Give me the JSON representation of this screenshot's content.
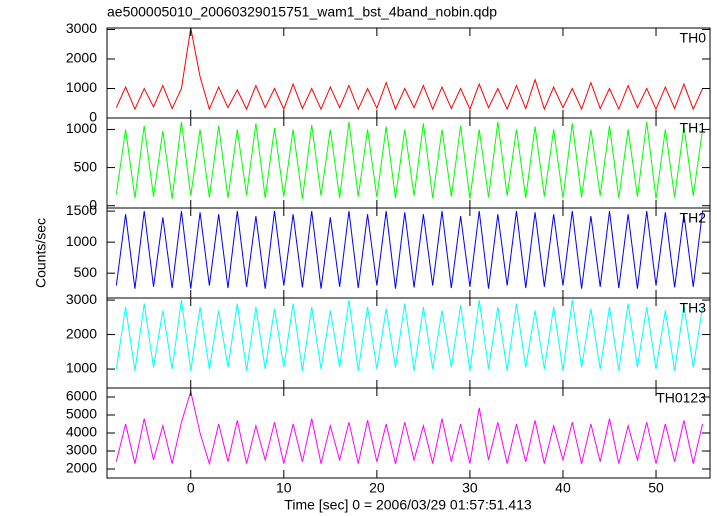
{
  "chart_data": {
    "type": "line",
    "title": "ae500005010_20060329015751_wam1_bst_4band_nobin.qdp",
    "x_label": "Time [sec] 0 = 2006/03/29 01:57:51.413",
    "y_label": "Counts/sec",
    "xlim": [
      -9,
      55.8
    ],
    "xticks": [
      0,
      10,
      20,
      30,
      40,
      50
    ],
    "x": [
      -8,
      -7,
      -6,
      -5,
      -4,
      -3,
      -2,
      -1,
      0,
      1,
      2,
      3,
      4,
      5,
      6,
      7,
      8,
      9,
      10,
      11,
      12,
      13,
      14,
      15,
      16,
      17,
      18,
      19,
      20,
      21,
      22,
      23,
      24,
      25,
      26,
      27,
      28,
      29,
      30,
      31,
      32,
      33,
      34,
      35,
      36,
      37,
      38,
      39,
      40,
      41,
      42,
      43,
      44,
      45,
      46,
      47,
      48,
      49,
      50,
      51,
      52,
      53,
      54,
      55
    ],
    "series": [
      {
        "name": "TH0",
        "color": "#ff0000",
        "ylim": [
          0,
          3050
        ],
        "yticks": [
          0,
          1000,
          2000,
          3000
        ],
        "values": [
          350,
          1050,
          300,
          1000,
          380,
          1100,
          320,
          1000,
          3050,
          1400,
          300,
          1050,
          350,
          950,
          300,
          1100,
          350,
          1000,
          300,
          1150,
          320,
          1000,
          300,
          1050,
          350,
          1100,
          300,
          1000,
          330,
          1200,
          300,
          1000,
          350,
          1100,
          300,
          1050,
          320,
          1000,
          300,
          1150,
          350,
          1000,
          300,
          1100,
          320,
          1300,
          300,
          1050,
          350,
          1000,
          300,
          1200,
          320,
          1000,
          300,
          1100,
          350,
          1000,
          300,
          1050,
          320,
          1150,
          300,
          1000
        ]
      },
      {
        "name": "TH1",
        "color": "#00ff00",
        "ylim": [
          -30,
          1150
        ],
        "yticks": [
          0,
          500,
          1000
        ],
        "values": [
          150,
          1000,
          100,
          1050,
          120,
          980,
          90,
          1100,
          130,
          1000,
          110,
          1050,
          100,
          1000,
          140,
          1080,
          100,
          1020,
          120,
          1000,
          90,
          1060,
          130,
          1000,
          100,
          1100,
          120,
          1000,
          110,
          1040,
          100,
          1000,
          130,
          1080,
          100,
          1000,
          120,
          1050,
          90,
          1000,
          110,
          1100,
          130,
          1000,
          100,
          1040,
          120,
          1000,
          100,
          1080,
          110,
          1000,
          130,
          1050,
          100,
          1000,
          120,
          1100,
          90,
          1000,
          110,
          1040,
          130,
          1000
        ]
      },
      {
        "name": "TH2",
        "color": "#0000ff",
        "ylim": [
          100,
          1550
        ],
        "yticks": [
          500,
          1000,
          1500
        ],
        "values": [
          300,
          1450,
          250,
          1500,
          280,
          1400,
          260,
          1500,
          250,
          1480,
          300,
          1450,
          260,
          1500,
          280,
          1420,
          250,
          1500,
          300,
          1450,
          270,
          1500,
          250,
          1400,
          280,
          1500,
          260,
          1450,
          300,
          1500,
          250,
          1480,
          270,
          1450,
          300,
          1500,
          260,
          1420,
          280,
          1500,
          250,
          1450,
          300,
          1500,
          260,
          1480,
          280,
          1450,
          300,
          1500,
          250,
          1420,
          280,
          1500,
          260,
          1450,
          250,
          1500,
          300,
          1480,
          270,
          1450,
          280,
          1500
        ]
      },
      {
        "name": "TH3",
        "color": "#00ffff",
        "ylim": [
          450,
          3060
        ],
        "yticks": [
          1000,
          2000,
          3000
        ],
        "values": [
          1000,
          2800,
          950,
          2900,
          1050,
          2700,
          1000,
          3000,
          950,
          2800,
          1000,
          2700,
          1050,
          2900,
          950,
          2800,
          1000,
          2750,
          1050,
          2900,
          950,
          2800,
          1000,
          2700,
          1050,
          3000,
          950,
          2800,
          1000,
          2750,
          1050,
          2900,
          950,
          2800,
          1000,
          2700,
          1050,
          2850,
          950,
          3000,
          1000,
          2800,
          950,
          2900,
          1050,
          2700,
          1000,
          2800,
          950,
          3000,
          1050,
          2750,
          1000,
          2800,
          950,
          2900,
          1050,
          2800,
          1000,
          2700,
          950,
          2850,
          1050,
          2800
        ]
      },
      {
        "name": "TH0123",
        "color": "#ff00ff",
        "ylim": [
          1500,
          6500
        ],
        "yticks": [
          2000,
          3000,
          4000,
          5000,
          6000
        ],
        "values": [
          2400,
          4500,
          2300,
          4800,
          2500,
          4400,
          2300,
          4600,
          6300,
          4000,
          2300,
          4500,
          2400,
          4700,
          2300,
          4400,
          2500,
          4600,
          2300,
          4500,
          2400,
          4800,
          2300,
          4400,
          2500,
          4600,
          2300,
          4700,
          2400,
          4500,
          2300,
          4600,
          2500,
          4400,
          2300,
          4800,
          2400,
          4500,
          2300,
          5400,
          2500,
          4600,
          2300,
          4500,
          2400,
          4700,
          2300,
          4400,
          2500,
          4600,
          2300,
          4500,
          2400,
          4800,
          2300,
          4400,
          2500,
          4600,
          2300,
          4500,
          2400,
          4700,
          2300,
          4500
        ]
      }
    ]
  }
}
